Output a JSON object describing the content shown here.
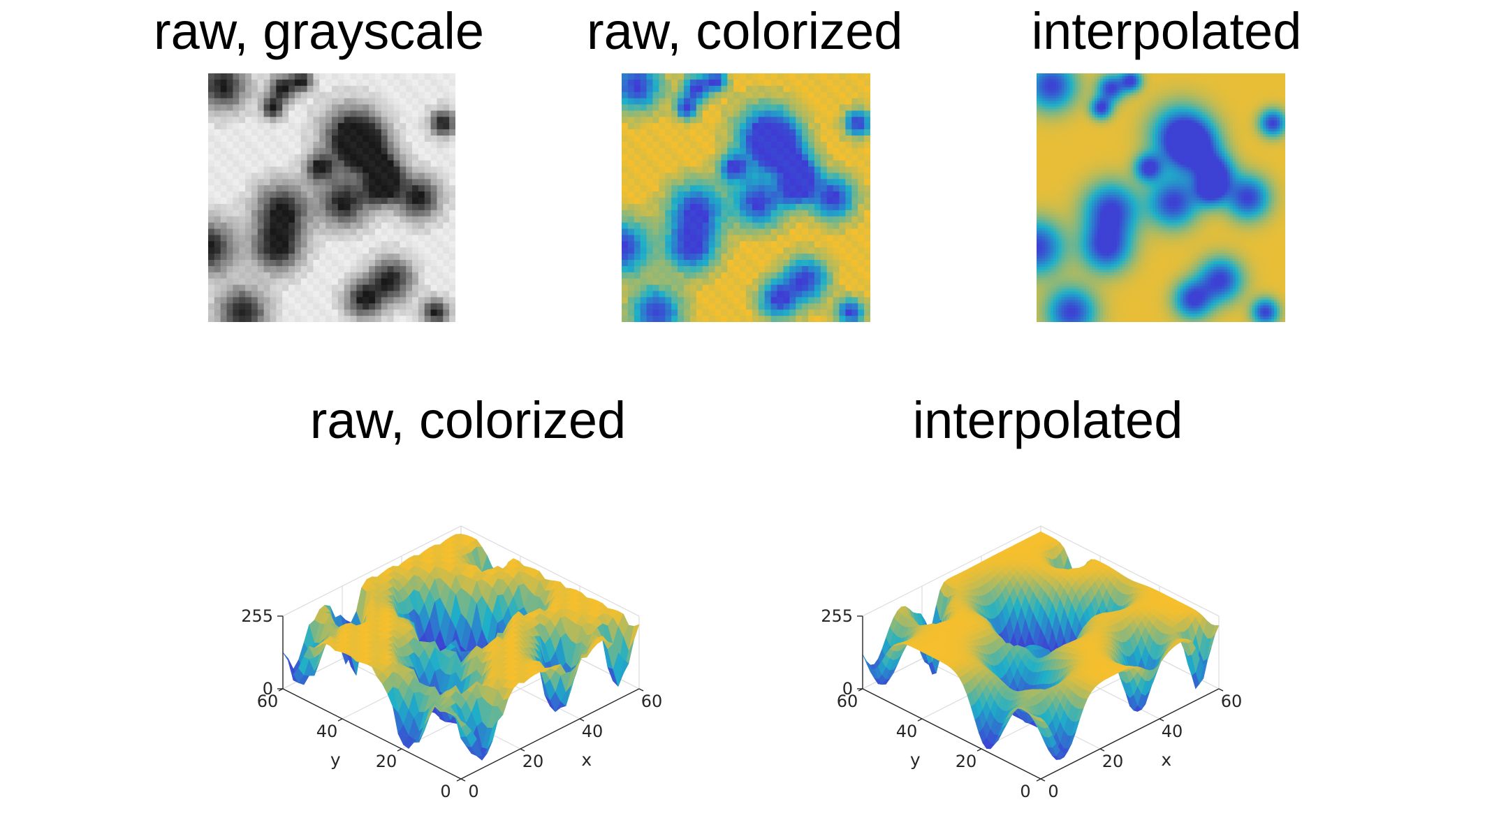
{
  "top_row": [
    {
      "title": "raw, grayscale",
      "style": "grayscale-blocky"
    },
    {
      "title": "raw, colorized",
      "style": "parula-blocky"
    },
    {
      "title": "interpolated",
      "style": "parula-smooth"
    }
  ],
  "bottom_row": [
    {
      "title": "raw, colorized",
      "surface": "jagged"
    },
    {
      "title": "interpolated",
      "surface": "smooth"
    }
  ],
  "axes": {
    "z_ticks": [
      "0",
      "255"
    ],
    "y_ticks": [
      "0",
      "20",
      "40",
      "60"
    ],
    "x_ticks": [
      "0",
      "20",
      "40",
      "60"
    ],
    "x_label": "x",
    "y_label": "y",
    "z_range": [
      0,
      255
    ],
    "xy_range": [
      0,
      60
    ]
  },
  "colors": {
    "parula_low": "#3e3cd4",
    "parula_mid": "#1fb0c8",
    "parula_high": "#f5bf2e",
    "gray_dark": "#1e1e1e",
    "gray_light": "#e8e8e8",
    "axis_line": "#262626",
    "grid_line": "#dcdcdc"
  }
}
